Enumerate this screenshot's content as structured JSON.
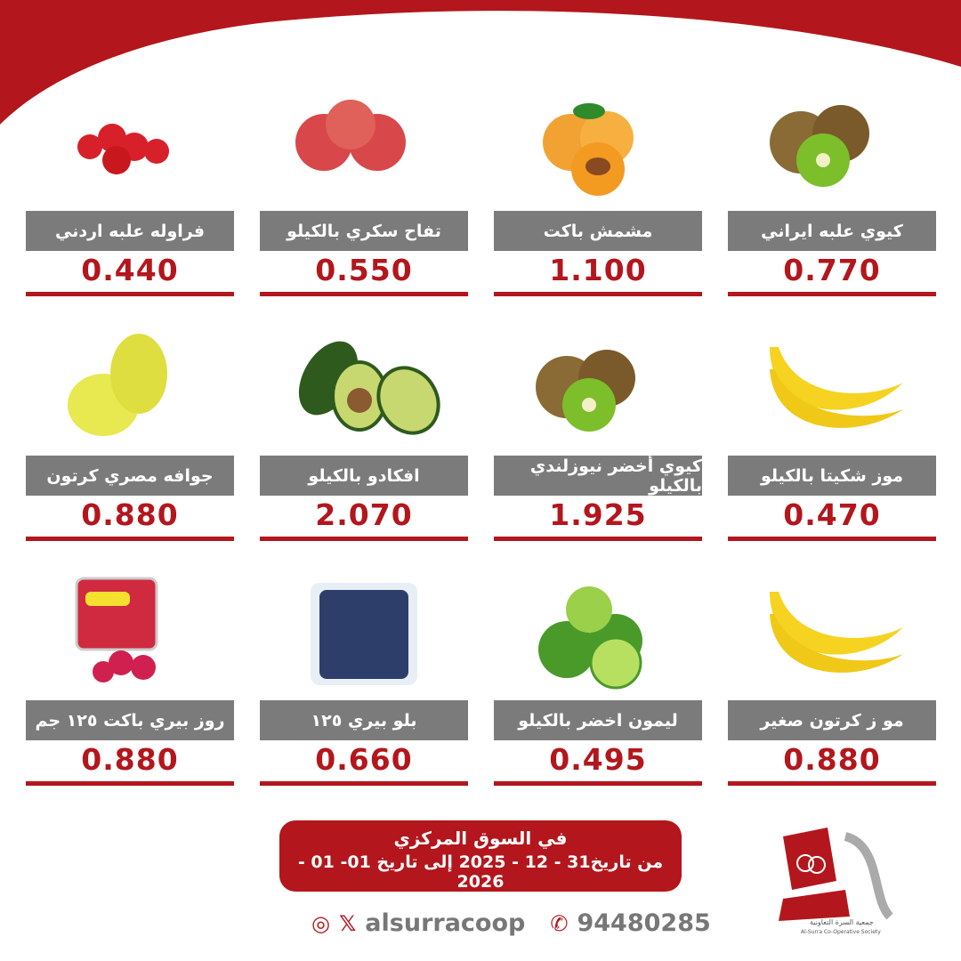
{
  "colors": {
    "brand_red": "#b3161c",
    "label_gray": "#7b7b7b"
  },
  "products": [
    {
      "name": "كيوي علبه ايراني",
      "price": "0.770",
      "icon": "kiwi"
    },
    {
      "name": "مشمش باكت",
      "price": "1.100",
      "icon": "apricot"
    },
    {
      "name": "تفاح سكري  بالكيلو",
      "price": "0.550",
      "icon": "apple"
    },
    {
      "name": "فراوله علبه اردني",
      "price": "0.440",
      "icon": "strawberry"
    },
    {
      "name": "موز شكيتا  بالكيلو",
      "price": "0.470",
      "icon": "banana"
    },
    {
      "name": "كيوي أخضر نيوزلندي بالكيلو",
      "price": "1.925",
      "icon": "kiwi"
    },
    {
      "name": "افكادو بالكيلو",
      "price": "2.070",
      "icon": "avocado"
    },
    {
      "name": "جوافه مصري كرتون",
      "price": "0.880",
      "icon": "guava"
    },
    {
      "name": "مو ز كرتون صغير",
      "price": "0.880",
      "icon": "banana"
    },
    {
      "name": "ليمون اخضر بالكيلو",
      "price": "0.495",
      "icon": "lime"
    },
    {
      "name": "بلو بيري ١٢٥",
      "price": "0.660",
      "icon": "blueberry"
    },
    {
      "name": "روز بيري باكت ١٢٥ جم",
      "price": "0.880",
      "icon": "raspberry"
    }
  ],
  "promo": {
    "location": "في السوق المركزي",
    "dates": "من تاريخ31 - 12 - 2025  إلى تاريخ 01- 01 - 2026"
  },
  "contact": {
    "handle": "alsurracoop",
    "phone": "94480285"
  },
  "logo": {
    "text_ar": "جمعية السرة التعاونية",
    "text_en": "Al-Surra Co-Operative Society"
  }
}
